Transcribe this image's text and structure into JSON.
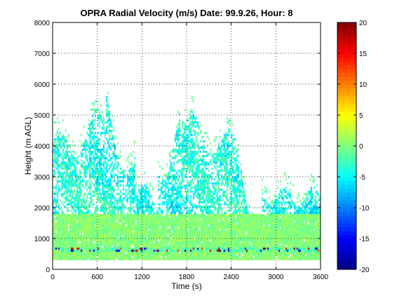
{
  "chart_data": {
    "type": "heatmap",
    "title": "OPRA Radial Velocity (m/s)  Date: 99.9.26, Hour: 8",
    "xlabel": "Time (s)",
    "ylabel": "Height (m AGL)",
    "xlim": [
      0,
      3600
    ],
    "ylim": [
      0,
      8000
    ],
    "xticks": [
      0,
      600,
      1200,
      1800,
      2400,
      3000,
      3600
    ],
    "yticks": [
      0,
      1000,
      2000,
      3000,
      4000,
      5000,
      6000,
      7000,
      8000
    ],
    "grid": "dotted",
    "colorbar": {
      "colormap": "jet",
      "range": [
        -20,
        20
      ],
      "ticks": [
        -20,
        -15,
        -10,
        -5,
        0,
        5,
        10,
        15,
        20
      ]
    },
    "colors": {
      "background": "#ffffff",
      "axis": "#000000",
      "grid": "#000000"
    }
  }
}
